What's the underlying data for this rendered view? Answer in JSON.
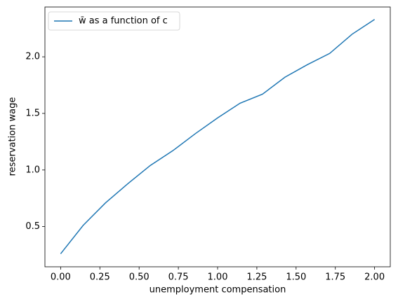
{
  "chart_data": {
    "type": "line",
    "xlabel": "unemployment compensation",
    "ylabel": "reservation wage",
    "x": [
      0,
      0.143,
      0.286,
      0.429,
      0.571,
      0.714,
      0.857,
      1.0,
      1.143,
      1.286,
      1.429,
      1.571,
      1.714,
      1.857,
      2.0
    ],
    "series": [
      {
        "name": "w̄ as a function of c",
        "color": "#1f77b4",
        "values": [
          0.26,
          0.51,
          0.71,
          0.88,
          1.04,
          1.17,
          1.32,
          1.46,
          1.59,
          1.67,
          1.82,
          1.93,
          2.03,
          2.2,
          2.33
        ]
      }
    ],
    "xlim": [
      -0.1,
      2.1
    ],
    "xticks": [
      {
        "value": 0,
        "label": "0.00"
      },
      {
        "value": 0.25,
        "label": "0.25"
      },
      {
        "value": 0.5,
        "label": "0.50"
      },
      {
        "value": 0.75,
        "label": "0.75"
      },
      {
        "value": 1,
        "label": "1.00"
      },
      {
        "value": 1.25,
        "label": "1.25"
      },
      {
        "value": 1.5,
        "label": "1.50"
      },
      {
        "value": 1.75,
        "label": "1.75"
      },
      {
        "value": 2,
        "label": "2.00"
      }
    ],
    "ylim": [
      0.145,
      2.44
    ],
    "yticks": [
      0.5,
      {
        "value": 1,
        "label": "1.0"
      },
      1.5,
      {
        "value": 2,
        "label": "2.0"
      }
    ],
    "grid": false,
    "legend": "upper left"
  }
}
